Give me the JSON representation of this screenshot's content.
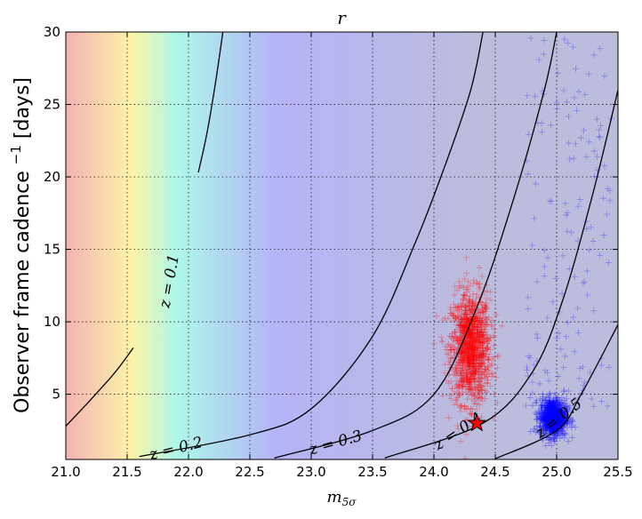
{
  "chart_data": {
    "type": "scatter",
    "title": "r",
    "xlabel": "m",
    "xlabel_sub": "5σ",
    "ylabel": "Observer frame cadence ",
    "ylabel_sup": "−1",
    "ylabel_tail": " [days]",
    "xlim": [
      21.0,
      25.5
    ],
    "ylim": [
      0.5,
      30.0
    ],
    "xticks": [
      "21.0",
      "21.5",
      "22.0",
      "22.5",
      "23.0",
      "23.5",
      "24.0",
      "24.5",
      "25.0",
      "25.5"
    ],
    "yticks": [
      "5",
      "10",
      "15",
      "20",
      "25",
      "30"
    ],
    "grid": true,
    "background_colors": [
      "#f4b3b3",
      "#fcf4a8",
      "#aef8e8",
      "#b4b4f8",
      "#bcbcdc"
    ],
    "contours": [
      {
        "label": "z = 0.1",
        "segments": [
          [
            [
              21.0,
              2.8
            ],
            [
              21.2,
              4.6
            ],
            [
              21.4,
              6.5
            ],
            [
              21.55,
              8.2
            ]
          ],
          [
            [
              22.08,
              20.3
            ],
            [
              22.15,
              23.0
            ],
            [
              22.22,
              26.5
            ],
            [
              22.28,
              30.0
            ]
          ]
        ]
      },
      {
        "label": "z = 0.2",
        "segments": [
          [
            [
              21.6,
              0.7
            ],
            [
              22.5,
              2.2
            ],
            [
              23.0,
              4.0
            ],
            [
              23.5,
              9.0
            ],
            [
              23.85,
              15.5
            ],
            [
              24.1,
              21.0
            ],
            [
              24.3,
              26.0
            ],
            [
              24.4,
              30.0
            ]
          ]
        ]
      },
      {
        "label": "z = 0.3",
        "segments": [
          [
            [
              22.7,
              0.6
            ],
            [
              23.5,
              2.5
            ],
            [
              24.0,
              5.0
            ],
            [
              24.35,
              11.0
            ],
            [
              24.65,
              18.5
            ],
            [
              24.9,
              26.0
            ],
            [
              25.0,
              30.0
            ]
          ]
        ]
      },
      {
        "label": "z = 0.4",
        "segments": [
          [
            [
              23.6,
              0.6
            ],
            [
              24.4,
              3.0
            ],
            [
              24.8,
              6.5
            ],
            [
              25.05,
              11.5
            ],
            [
              25.3,
              19.0
            ],
            [
              25.5,
              26.0
            ]
          ]
        ]
      },
      {
        "label": "z = 0.5",
        "segments": [
          [
            [
              24.5,
              0.55
            ],
            [
              25.0,
              2.5
            ],
            [
              25.2,
              5.0
            ],
            [
              25.5,
              9.8
            ]
          ]
        ]
      }
    ],
    "series": [
      {
        "color": "#ff0000",
        "center": [
          24.3,
          8.2
        ],
        "spread": [
          0.08,
          1.9
        ],
        "count": 1300
      },
      {
        "color": "#0000ff",
        "center": [
          24.97,
          3.4
        ],
        "spread": [
          0.055,
          0.65
        ],
        "count": 950
      }
    ],
    "sparse_blue": {
      "color": "#0000ff",
      "x_range": [
        24.75,
        25.45
      ],
      "y_range": [
        4.0,
        30.0
      ],
      "count": 150
    },
    "star": {
      "x": 24.35,
      "y": 3.0,
      "color": "#ff0000"
    }
  }
}
